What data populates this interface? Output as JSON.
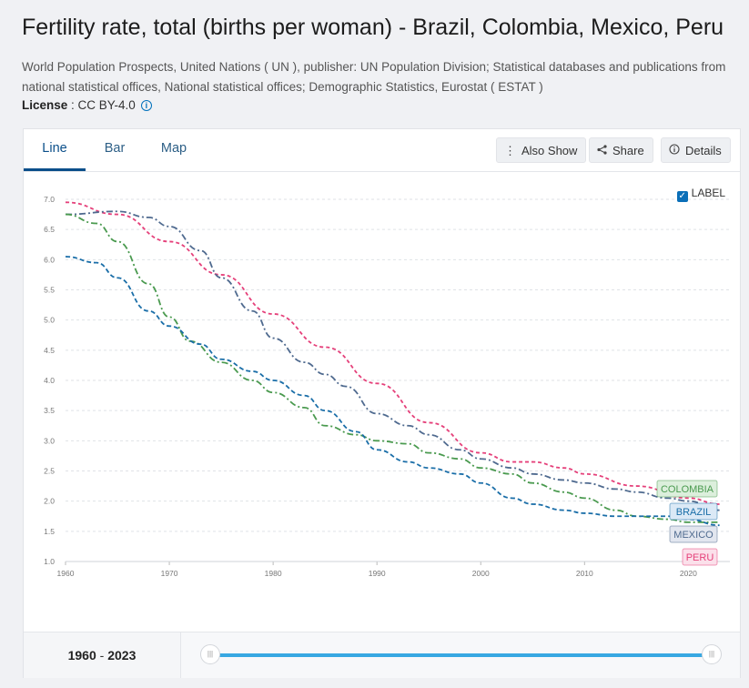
{
  "page": {
    "title": "Fertility rate, total (births per woman) - Brazil, Colombia, Mexico, Peru",
    "source": "World Population Prospects, United Nations ( UN ), publisher: UN Population Division; Statistical databases and publications from national statistical offices, National statistical offices; Demographic Statistics, Eurostat ( ESTAT )",
    "license_label": "License",
    "license_value": " : CC BY-4.0"
  },
  "tabs": [
    {
      "label": "Line"
    },
    {
      "label": "Bar"
    },
    {
      "label": "Map"
    }
  ],
  "toolbar": {
    "also_show": "Also Show",
    "share": "Share",
    "details": "Details"
  },
  "label_toggle": "LABEL",
  "range": {
    "start": "1960",
    "sep": " - ",
    "end": "2023"
  },
  "colors": {
    "Brazil": "#1a6ea8",
    "Colombia": "#4a9a4f",
    "Mexico": "#4f6a8f",
    "Peru": "#e5407a"
  },
  "chart_data": {
    "type": "line",
    "title": "Fertility rate, total (births per woman)",
    "xlabel": "",
    "ylabel": "",
    "xlim": [
      1960,
      2024
    ],
    "ylim": [
      1.0,
      7.0
    ],
    "yticks": [
      "7.0",
      "6.5",
      "6.0",
      "5.5",
      "5.0",
      "4.5",
      "4.0",
      "3.5",
      "3.0",
      "2.5",
      "2.0",
      "1.5",
      "1.0"
    ],
    "xticks": [
      "1960",
      "1970",
      "1980",
      "1990",
      "2000",
      "2010",
      "2020"
    ],
    "series": [
      {
        "name": "Peru",
        "label": "PERU",
        "points": [
          [
            1960,
            6.95
          ],
          [
            1965,
            6.75
          ],
          [
            1970,
            6.3
          ],
          [
            1975,
            5.75
          ],
          [
            1980,
            5.1
          ],
          [
            1985,
            4.55
          ],
          [
            1990,
            3.95
          ],
          [
            1995,
            3.3
          ],
          [
            2000,
            2.8
          ],
          [
            2003,
            2.65
          ],
          [
            2005,
            2.65
          ],
          [
            2008,
            2.55
          ],
          [
            2010,
            2.45
          ],
          [
            2015,
            2.25
          ],
          [
            2020,
            2.05
          ],
          [
            2023,
            1.95
          ]
        ]
      },
      {
        "name": "Mexico",
        "label": "MEXICO",
        "points": [
          [
            1960,
            6.75
          ],
          [
            1965,
            6.8
          ],
          [
            1968,
            6.7
          ],
          [
            1970,
            6.55
          ],
          [
            1973,
            6.15
          ],
          [
            1975,
            5.7
          ],
          [
            1978,
            5.15
          ],
          [
            1980,
            4.7
          ],
          [
            1983,
            4.3
          ],
          [
            1985,
            4.1
          ],
          [
            1987,
            3.9
          ],
          [
            1990,
            3.45
          ],
          [
            1993,
            3.25
          ],
          [
            1995,
            3.1
          ],
          [
            1998,
            2.85
          ],
          [
            2000,
            2.7
          ],
          [
            2003,
            2.55
          ],
          [
            2005,
            2.45
          ],
          [
            2008,
            2.35
          ],
          [
            2010,
            2.3
          ],
          [
            2013,
            2.2
          ],
          [
            2015,
            2.15
          ],
          [
            2018,
            2.05
          ],
          [
            2020,
            2.0
          ],
          [
            2023,
            1.85
          ]
        ]
      },
      {
        "name": "Colombia",
        "label": "COLOMBIA",
        "points": [
          [
            1960,
            6.75
          ],
          [
            1963,
            6.6
          ],
          [
            1965,
            6.3
          ],
          [
            1968,
            5.6
          ],
          [
            1970,
            5.05
          ],
          [
            1972,
            4.65
          ],
          [
            1975,
            4.3
          ],
          [
            1978,
            4.0
          ],
          [
            1980,
            3.8
          ],
          [
            1983,
            3.55
          ],
          [
            1985,
            3.25
          ],
          [
            1988,
            3.1
          ],
          [
            1990,
            3.0
          ],
          [
            1993,
            2.95
          ],
          [
            1995,
            2.8
          ],
          [
            1998,
            2.7
          ],
          [
            2000,
            2.55
          ],
          [
            2003,
            2.45
          ],
          [
            2005,
            2.3
          ],
          [
            2008,
            2.15
          ],
          [
            2010,
            2.05
          ],
          [
            2013,
            1.85
          ],
          [
            2015,
            1.75
          ],
          [
            2018,
            1.7
          ],
          [
            2020,
            1.65
          ],
          [
            2023,
            1.65
          ]
        ]
      },
      {
        "name": "Brazil",
        "label": "BRAZIL",
        "points": [
          [
            1960,
            6.05
          ],
          [
            1963,
            5.95
          ],
          [
            1965,
            5.7
          ],
          [
            1968,
            5.15
          ],
          [
            1970,
            4.9
          ],
          [
            1973,
            4.6
          ],
          [
            1975,
            4.35
          ],
          [
            1978,
            4.15
          ],
          [
            1980,
            4.0
          ],
          [
            1983,
            3.75
          ],
          [
            1985,
            3.5
          ],
          [
            1988,
            3.15
          ],
          [
            1990,
            2.85
          ],
          [
            1993,
            2.65
          ],
          [
            1995,
            2.55
          ],
          [
            1998,
            2.45
          ],
          [
            2000,
            2.3
          ],
          [
            2003,
            2.05
          ],
          [
            2005,
            1.95
          ],
          [
            2008,
            1.85
          ],
          [
            2010,
            1.8
          ],
          [
            2013,
            1.75
          ],
          [
            2015,
            1.75
          ],
          [
            2018,
            1.75
          ],
          [
            2020,
            1.7
          ],
          [
            2023,
            1.6
          ]
        ]
      }
    ]
  }
}
